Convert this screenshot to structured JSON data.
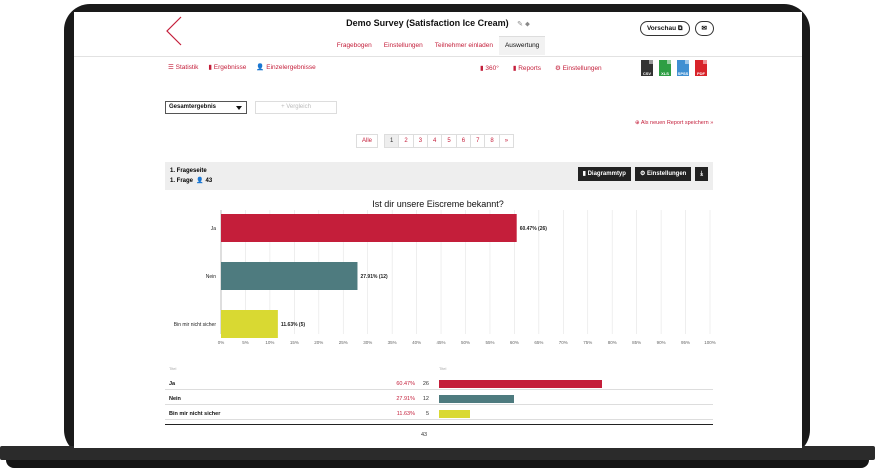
{
  "header": {
    "title": "Demo Survey (Satisfaction Ice Cream)",
    "tabs": [
      "Fragebogen",
      "Einstellungen",
      "Teilnehmer einladen",
      "Auswertung"
    ],
    "active_tab": 3,
    "preview_label": "Vorschau"
  },
  "subnav": {
    "left": [
      {
        "label": "Statistik",
        "icon": "list-icon"
      },
      {
        "label": "Ergebnisse",
        "icon": "bar-chart-icon"
      },
      {
        "label": "Einzelergebnisse",
        "icon": "person-icon"
      }
    ],
    "active": 1,
    "right": [
      {
        "label": "360°",
        "icon": "bar-chart-icon"
      },
      {
        "label": "Reports",
        "icon": "bar-chart-icon"
      },
      {
        "label": "Einstellungen",
        "icon": "gear-icon"
      }
    ],
    "exports": [
      {
        "label": "CSV",
        "color": "#333333"
      },
      {
        "label": "XLS",
        "color": "#2e9e44"
      },
      {
        "label": "SPSS",
        "color": "#3f8fd2"
      },
      {
        "label": "PDF",
        "color": "#d8232a"
      }
    ]
  },
  "filters": {
    "select_value": "Gesamtergebnis",
    "compare_label": "Vergleich",
    "save_report": "Als neuen Report speichern »"
  },
  "pagination": {
    "all": "Alle",
    "pages": [
      "1",
      "2",
      "3",
      "4",
      "5",
      "6",
      "7",
      "8",
      "»"
    ],
    "current": 0
  },
  "question": {
    "page_label": "1. Frageseite",
    "question_label": "1. Frage",
    "respondents": "43",
    "chart_type_btn": "Diagrammtyp",
    "settings_btn": "Einstellungen"
  },
  "chart_data": {
    "type": "bar",
    "orientation": "horizontal",
    "title": "Ist dir unsere Eiscreme bekannt?",
    "categories": [
      "Ja",
      "Nein",
      "Bin mir nicht sicher"
    ],
    "values": [
      60.47,
      27.91,
      11.63
    ],
    "counts": [
      26,
      12,
      5
    ],
    "labels": [
      "60.47% (26)",
      "27.91% (12)",
      "11.63% (5)"
    ],
    "colors": [
      "#c41e3a",
      "#4e7b7f",
      "#d9d932"
    ],
    "xlim": [
      0,
      100
    ],
    "xticks": [
      "0%",
      "5%",
      "10%",
      "15%",
      "20%",
      "25%",
      "30%",
      "35%",
      "40%",
      "45%",
      "50%",
      "55%",
      "60%",
      "65%",
      "70%",
      "75%",
      "80%",
      "85%",
      "90%",
      "95%",
      "100%"
    ],
    "grid": true
  },
  "table": {
    "header_left": "Titel",
    "header_right": "Titel",
    "rows": [
      {
        "label": "Ja",
        "pct": "60.47%",
        "count": "26",
        "value": 60.47
      },
      {
        "label": "Nein",
        "pct": "27.91%",
        "count": "12",
        "value": 27.91
      },
      {
        "label": "Bin mir nicht sicher",
        "pct": "11.63%",
        "count": "5",
        "value": 11.63
      }
    ],
    "total": "43"
  }
}
